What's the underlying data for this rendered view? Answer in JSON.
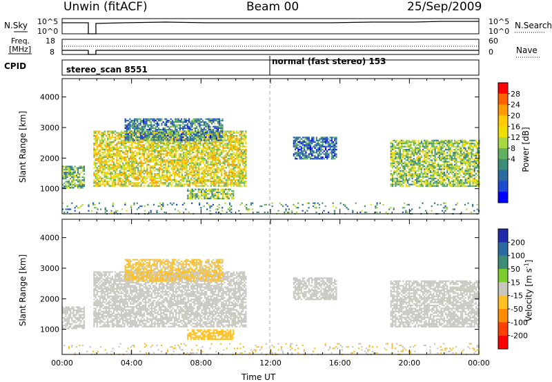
{
  "header": {
    "station": "Unwin (fitACF)",
    "beam": "Beam 00",
    "date": "25/Sep/2009"
  },
  "noise_panel": {
    "left_label": "N.Sky",
    "right_label": "N.Search",
    "left_ticks": [
      "10^5",
      "10^0"
    ],
    "right_ticks": [
      "10^5",
      "10^0"
    ]
  },
  "freq_panel": {
    "left_label_1": "Freq.",
    "left_label_2": "[MHz]",
    "right_label": "Nave",
    "left_ticks": [
      "18",
      "8"
    ],
    "right_ticks": [
      "60",
      "0"
    ]
  },
  "cpid_panel": {
    "label": "CPID",
    "modes": [
      {
        "name": "stereo_scan",
        "id": "8551",
        "start_hour": 0
      },
      {
        "name": "normal (fast stereo)",
        "id": "153",
        "start_hour": 12
      }
    ]
  },
  "power_scale": {
    "title": "Power [dB]",
    "ticks": [
      "28",
      "24",
      "20",
      "16",
      "12",
      "8",
      "4"
    ],
    "colors": [
      "#ff0000",
      "#ff6000",
      "#ff9a00",
      "#ffcc00",
      "#f0e000",
      "#a8d840",
      "#60b060",
      "#3c8c78",
      "#2a6aa0",
      "#1e4ad0",
      "#0000ff"
    ]
  },
  "velocity_scale": {
    "title": "Velocity [m s",
    "title_sup": "-1",
    "title_end": "]",
    "ticks": [
      "200",
      "100",
      "50",
      "15",
      "-15",
      "-50",
      "-100",
      "-200"
    ],
    "colors": [
      "#1e2aa8",
      "#2a6aa0",
      "#3c8c78",
      "#7ccc30",
      "#c8c8c0",
      "#ffc020",
      "#ff8c00",
      "#ff4000",
      "#ff0000"
    ]
  },
  "axes": {
    "ylabel": "Slant Range [km]",
    "xlabel": "Time UT",
    "y_ticks": [
      "4000",
      "3000",
      "2000",
      "1000"
    ],
    "x_ticks": [
      "00:00",
      "04:00",
      "08:00",
      "12:00",
      "16:00",
      "20:00",
      "00:00"
    ]
  },
  "chart_data": [
    {
      "type": "heatmap",
      "title": "Power",
      "xlabel": "Time UT",
      "ylabel": "Slant Range [km]",
      "xlim": [
        0,
        24
      ],
      "ylim": [
        180,
        4600
      ],
      "colorbar": {
        "label": "Power [dB]",
        "range": [
          0,
          30
        ],
        "ticks": [
          4,
          8,
          12,
          16,
          20,
          24,
          28
        ]
      },
      "echo_regions": [
        {
          "t_start": 0.0,
          "t_end": 1.3,
          "range_low": 1050,
          "range_high": 1750,
          "power_db": 12
        },
        {
          "t_start": 1.8,
          "t_end": 10.6,
          "range_low": 1100,
          "range_high": 2900,
          "power_db": 18
        },
        {
          "t_start": 3.6,
          "t_end": 9.2,
          "range_low": 2600,
          "range_high": 3300,
          "power_db": 8
        },
        {
          "t_start": 7.2,
          "t_end": 9.9,
          "range_low": 700,
          "range_high": 1000,
          "power_db": 14
        },
        {
          "t_start": 13.3,
          "t_end": 15.8,
          "range_low": 2000,
          "range_high": 2700,
          "power_db": 6
        },
        {
          "t_start": 18.9,
          "t_end": 24.0,
          "range_low": 1100,
          "range_high": 2600,
          "power_db": 14
        },
        {
          "t_start": 0.0,
          "t_end": 24.0,
          "range_low": 200,
          "range_high": 550,
          "power_db": 10
        }
      ]
    },
    {
      "type": "heatmap",
      "title": "Velocity",
      "xlabel": "Time UT",
      "ylabel": "Slant Range [km]",
      "xlim": [
        0,
        24
      ],
      "ylim": [
        180,
        4600
      ],
      "colorbar": {
        "label": "Velocity [m s-1]",
        "range": [
          -250,
          250
        ],
        "ticks": [
          200,
          100,
          50,
          15,
          -15,
          -50,
          -100,
          -200
        ]
      },
      "echo_regions": [
        {
          "t_start": 0.0,
          "t_end": 1.3,
          "range_low": 1050,
          "range_high": 1750,
          "velocity": 0
        },
        {
          "t_start": 1.8,
          "t_end": 10.6,
          "range_low": 1100,
          "range_high": 2900,
          "velocity": 0
        },
        {
          "t_start": 3.6,
          "t_end": 9.2,
          "range_low": 2600,
          "range_high": 3300,
          "velocity": -40
        },
        {
          "t_start": 7.2,
          "t_end": 9.9,
          "range_low": 700,
          "range_high": 1000,
          "velocity": -60
        },
        {
          "t_start": 13.3,
          "t_end": 15.8,
          "range_low": 2000,
          "range_high": 2700,
          "velocity": 0
        },
        {
          "t_start": 18.9,
          "t_end": 24.0,
          "range_low": 1100,
          "range_high": 2600,
          "velocity": 0
        },
        {
          "t_start": 0.0,
          "t_end": 24.0,
          "range_low": 200,
          "range_high": 550,
          "velocity": -30
        }
      ]
    }
  ]
}
